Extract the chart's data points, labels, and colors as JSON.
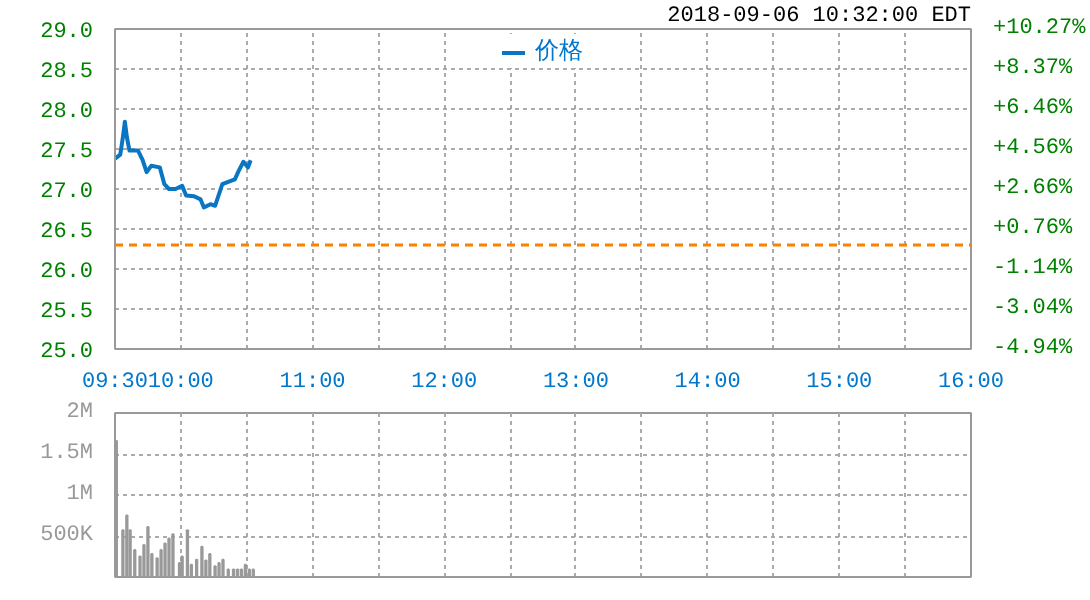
{
  "chart_data": [
    {
      "type": "line",
      "annotations": [
        "2018-09-06 10:32:00 EDT"
      ],
      "x": [
        9.5,
        9.54,
        9.56,
        9.575,
        9.59,
        9.61,
        9.675,
        9.71,
        9.74,
        9.775,
        9.84,
        9.875,
        9.91,
        9.96,
        10.01,
        10.04,
        10.1,
        10.15,
        10.175,
        10.225,
        10.26,
        10.315,
        10.36,
        10.41,
        10.44,
        10.475,
        10.51,
        10.53
      ],
      "series": [
        {
          "name": "价格",
          "color": "#0a75c2",
          "values": [
            27.38,
            27.43,
            27.65,
            27.84,
            27.65,
            27.48,
            27.48,
            27.36,
            27.21,
            27.29,
            27.27,
            27.06,
            27.0,
            27.0,
            27.04,
            26.92,
            26.91,
            26.87,
            26.77,
            26.81,
            26.79,
            27.06,
            27.09,
            27.12,
            27.23,
            27.34,
            27.27,
            27.36
          ]
        }
      ],
      "xlim": [
        9.5,
        16
      ],
      "xticks": [
        {
          "value": 9.5,
          "label": "09:30"
        },
        {
          "value": 10,
          "label": "10:00"
        },
        {
          "value": 10.5,
          "label": null
        },
        {
          "value": 11,
          "label": "11:00"
        },
        {
          "value": 11.5,
          "label": null
        },
        {
          "value": 12,
          "label": "12:00"
        },
        {
          "value": 12.5,
          "label": null
        },
        {
          "value": 13,
          "label": "13:00"
        },
        {
          "value": 13.5,
          "label": null
        },
        {
          "value": 14,
          "label": "14:00"
        },
        {
          "value": 14.5,
          "label": null
        },
        {
          "value": 15,
          "label": "15:00"
        },
        {
          "value": 15.5,
          "label": null
        },
        {
          "value": 16,
          "label": "16:00"
        }
      ],
      "ylim": [
        25,
        29
      ],
      "yticks": [
        {
          "value": 25,
          "label": "25.0"
        },
        {
          "value": 25.5,
          "label": "25.5"
        },
        {
          "value": 26,
          "label": "26.0"
        },
        {
          "value": 26.5,
          "label": "26.5"
        },
        {
          "value": 27,
          "label": "27.0"
        },
        {
          "value": 27.5,
          "label": "27.5"
        },
        {
          "value": 28,
          "label": "28.0"
        },
        {
          "value": 28.5,
          "label": "28.5"
        },
        {
          "value": 29,
          "label": "29.0"
        }
      ],
      "y2lim": [
        -4.94,
        10.27
      ],
      "y2ticks": [
        {
          "value": -4.94,
          "label": "-4.94%"
        },
        {
          "value": -3.04,
          "label": "-3.04%"
        },
        {
          "value": -1.14,
          "label": "-1.14%"
        },
        {
          "value": 0.76,
          "label": "+0.76%"
        },
        {
          "value": 2.66,
          "label": "+2.66%"
        },
        {
          "value": 4.56,
          "label": "+4.56%"
        },
        {
          "value": 6.46,
          "label": "+6.46%"
        },
        {
          "value": 8.37,
          "label": "+8.37%"
        },
        {
          "value": 10.27,
          "label": "+10.27%"
        }
      ],
      "ref_lines": [
        {
          "axis": "y",
          "value": 26.3,
          "color": "#ff8000",
          "line_style": "dashed"
        }
      ],
      "grid": true,
      "legend": "top",
      "line_style": "solid"
    },
    {
      "type": "bar",
      "color": "#999999",
      "x": [
        9.51,
        9.56,
        9.59,
        9.615,
        9.65,
        9.69,
        9.72,
        9.75,
        9.78,
        9.82,
        9.85,
        9.88,
        9.91,
        9.94,
        9.99,
        10.01,
        10.05,
        10.08,
        10.12,
        10.16,
        10.19,
        10.22,
        10.26,
        10.29,
        10.32,
        10.36,
        10.4,
        10.43,
        10.46,
        10.49,
        10.52,
        10.55
      ],
      "values": [
        1660000,
        570000,
        750000,
        570000,
        330000,
        250000,
        390000,
        610000,
        280000,
        230000,
        330000,
        410000,
        470000,
        520000,
        170000,
        250000,
        570000,
        150000,
        210000,
        370000,
        200000,
        280000,
        130000,
        170000,
        210000,
        90000,
        90000,
        90000,
        90000,
        150000,
        90000,
        90000
      ],
      "xlim": [
        9.5,
        16
      ],
      "xticks": [
        9.5,
        10,
        10.5,
        11,
        11.5,
        12,
        12.5,
        13,
        13.5,
        14,
        14.5,
        15,
        15.5,
        16
      ],
      "ylim": [
        0,
        2000000
      ],
      "yticks": [
        {
          "value": 0,
          "label": null
        },
        {
          "value": 500000,
          "label": "500K"
        },
        {
          "value": 1000000,
          "label": "1M"
        },
        {
          "value": 1500000,
          "label": "1.5M"
        },
        {
          "value": 2000000,
          "label": "2M"
        }
      ],
      "grid": true,
      "tick_labels": "y"
    }
  ]
}
